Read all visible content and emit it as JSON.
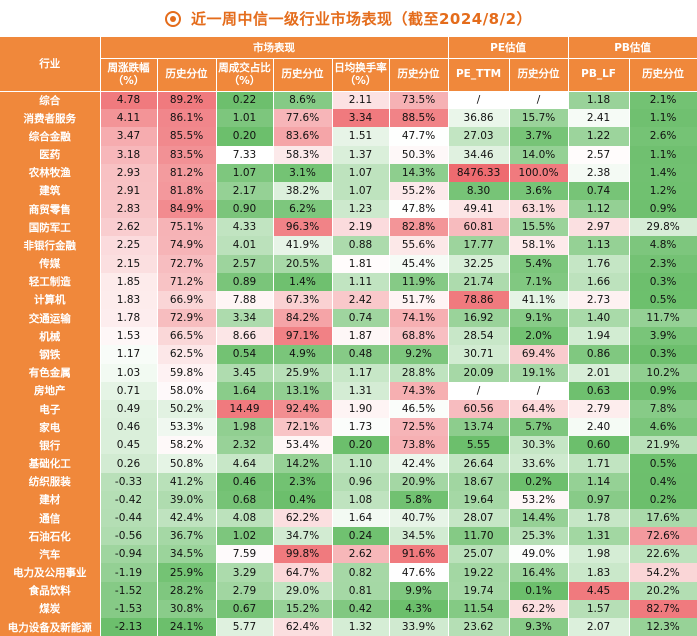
{
  "title": "近一周中信一级行业市场表现（截至2024/8/2）",
  "headers": {
    "industry": "行业",
    "groups": [
      "市场表现",
      "PE估值",
      "PB估值"
    ],
    "columns": [
      "周涨跌幅（%）",
      "历史分位",
      "周成交占比（%）",
      "历史分位",
      "日均换手率（%）",
      "历史分位",
      "PE_TTM",
      "历史分位",
      "PB_LF",
      "历史分位"
    ]
  },
  "rows": [
    {
      "name": "综合",
      "cells": [
        "4.78",
        "89.2%",
        "0.22",
        "8.6%",
        "2.11",
        "73.5%",
        "/",
        "/",
        "1.18",
        "2.1%"
      ]
    },
    {
      "name": "消费者服务",
      "cells": [
        "4.11",
        "86.1%",
        "1.01",
        "77.6%",
        "3.34",
        "88.5%",
        "36.86",
        "15.7%",
        "2.41",
        "1.1%"
      ]
    },
    {
      "name": "综合金融",
      "cells": [
        "3.47",
        "85.5%",
        "0.20",
        "83.6%",
        "1.51",
        "47.7%",
        "27.03",
        "3.7%",
        "1.22",
        "2.6%"
      ]
    },
    {
      "name": "医药",
      "cells": [
        "3.18",
        "83.5%",
        "7.33",
        "58.3%",
        "1.37",
        "50.3%",
        "34.46",
        "14.0%",
        "2.57",
        "1.1%"
      ]
    },
    {
      "name": "农林牧渔",
      "cells": [
        "2.93",
        "81.2%",
        "1.07",
        "3.1%",
        "1.07",
        "14.3%",
        "8476.33",
        "100.0%",
        "2.38",
        "1.4%"
      ]
    },
    {
      "name": "建筑",
      "cells": [
        "2.91",
        "81.8%",
        "2.17",
        "38.2%",
        "1.07",
        "55.2%",
        "8.30",
        "3.6%",
        "0.74",
        "1.2%"
      ]
    },
    {
      "name": "商贸零售",
      "cells": [
        "2.83",
        "84.9%",
        "0.90",
        "6.2%",
        "1.23",
        "47.8%",
        "49.41",
        "63.1%",
        "1.12",
        "0.9%"
      ]
    },
    {
      "name": "国防军工",
      "cells": [
        "2.62",
        "75.1%",
        "4.33",
        "96.3%",
        "2.19",
        "82.8%",
        "60.81",
        "15.5%",
        "2.97",
        "29.8%"
      ]
    },
    {
      "name": "非银行金融",
      "cells": [
        "2.25",
        "74.9%",
        "4.01",
        "41.9%",
        "0.88",
        "55.6%",
        "17.77",
        "58.1%",
        "1.13",
        "4.8%"
      ]
    },
    {
      "name": "传媒",
      "cells": [
        "2.15",
        "72.7%",
        "2.57",
        "20.5%",
        "1.81",
        "45.4%",
        "32.25",
        "5.4%",
        "1.76",
        "2.3%"
      ]
    },
    {
      "name": "轻工制造",
      "cells": [
        "1.85",
        "71.2%",
        "0.89",
        "1.4%",
        "1.11",
        "11.9%",
        "21.74",
        "7.1%",
        "1.66",
        "0.3%"
      ]
    },
    {
      "name": "计算机",
      "cells": [
        "1.83",
        "66.9%",
        "7.88",
        "67.3%",
        "2.42",
        "51.7%",
        "78.86",
        "41.1%",
        "2.73",
        "0.5%"
      ]
    },
    {
      "name": "交通运输",
      "cells": [
        "1.78",
        "72.9%",
        "3.34",
        "84.2%",
        "0.74",
        "74.1%",
        "16.92",
        "9.1%",
        "1.40",
        "11.7%"
      ]
    },
    {
      "name": "机械",
      "cells": [
        "1.53",
        "66.5%",
        "8.66",
        "97.1%",
        "1.87",
        "68.8%",
        "28.54",
        "2.0%",
        "1.94",
        "3.9%"
      ]
    },
    {
      "name": "钢铁",
      "cells": [
        "1.17",
        "62.5%",
        "0.54",
        "4.9%",
        "0.48",
        "9.2%",
        "30.71",
        "69.4%",
        "0.86",
        "0.3%"
      ]
    },
    {
      "name": "有色金属",
      "cells": [
        "1.03",
        "59.8%",
        "3.45",
        "25.9%",
        "1.17",
        "28.8%",
        "20.09",
        "19.1%",
        "2.01",
        "10.2%"
      ]
    },
    {
      "name": "房地产",
      "cells": [
        "0.71",
        "58.0%",
        "1.64",
        "13.1%",
        "1.31",
        "74.3%",
        "/",
        "/",
        "0.63",
        "0.9%"
      ]
    },
    {
      "name": "电子",
      "cells": [
        "0.49",
        "50.2%",
        "14.49",
        "92.4%",
        "1.90",
        "46.5%",
        "60.56",
        "64.4%",
        "2.79",
        "7.8%"
      ]
    },
    {
      "name": "家电",
      "cells": [
        "0.46",
        "53.3%",
        "1.98",
        "72.1%",
        "1.73",
        "72.5%",
        "13.74",
        "5.7%",
        "2.40",
        "4.6%"
      ]
    },
    {
      "name": "银行",
      "cells": [
        "0.45",
        "58.2%",
        "2.32",
        "53.4%",
        "0.20",
        "73.8%",
        "5.55",
        "30.3%",
        "0.60",
        "21.9%"
      ]
    },
    {
      "name": "基础化工",
      "cells": [
        "0.26",
        "50.8%",
        "4.64",
        "14.2%",
        "1.10",
        "42.4%",
        "26.64",
        "33.6%",
        "1.71",
        "0.5%"
      ]
    },
    {
      "name": "纺织服装",
      "cells": [
        "-0.33",
        "41.2%",
        "0.46",
        "2.3%",
        "0.96",
        "20.9%",
        "18.67",
        "0.2%",
        "1.14",
        "0.4%"
      ]
    },
    {
      "name": "建材",
      "cells": [
        "-0.42",
        "39.0%",
        "0.68",
        "0.4%",
        "1.08",
        "5.8%",
        "19.64",
        "53.2%",
        "0.97",
        "0.2%"
      ]
    },
    {
      "name": "通信",
      "cells": [
        "-0.44",
        "42.4%",
        "4.08",
        "62.2%",
        "1.64",
        "40.7%",
        "28.07",
        "14.4%",
        "1.78",
        "17.6%"
      ]
    },
    {
      "name": "石油石化",
      "cells": [
        "-0.56",
        "36.7%",
        "1.02",
        "34.7%",
        "0.24",
        "34.5%",
        "11.70",
        "25.3%",
        "1.31",
        "72.6%"
      ]
    },
    {
      "name": "汽车",
      "cells": [
        "-0.94",
        "34.5%",
        "7.59",
        "99.8%",
        "2.62",
        "91.6%",
        "25.07",
        "49.0%",
        "1.98",
        "22.6%"
      ]
    },
    {
      "name": "电力及公用事业",
      "cells": [
        "-1.19",
        "25.9%",
        "3.29",
        "64.7%",
        "0.82",
        "47.6%",
        "19.22",
        "16.4%",
        "1.83",
        "54.2%"
      ]
    },
    {
      "name": "食品饮料",
      "cells": [
        "-1.52",
        "28.2%",
        "2.79",
        "29.0%",
        "0.81",
        "9.9%",
        "19.74",
        "0.1%",
        "4.45",
        "20.2%"
      ]
    },
    {
      "name": "煤炭",
      "cells": [
        "-1.53",
        "30.8%",
        "0.67",
        "15.2%",
        "0.42",
        "4.3%",
        "11.54",
        "62.2%",
        "1.57",
        "82.7%"
      ]
    },
    {
      "name": "电力设备及新能源",
      "cells": [
        "-2.13",
        "24.1%",
        "5.77",
        "62.4%",
        "1.32",
        "33.9%",
        "23.62",
        "9.3%",
        "2.07",
        "12.3%"
      ]
    }
  ],
  "colors": {
    "header": "#f0883b",
    "title": "#e46c1b",
    "high": "#ee6b70",
    "low": "#5cb85c",
    "neutral": "#ffffff"
  }
}
